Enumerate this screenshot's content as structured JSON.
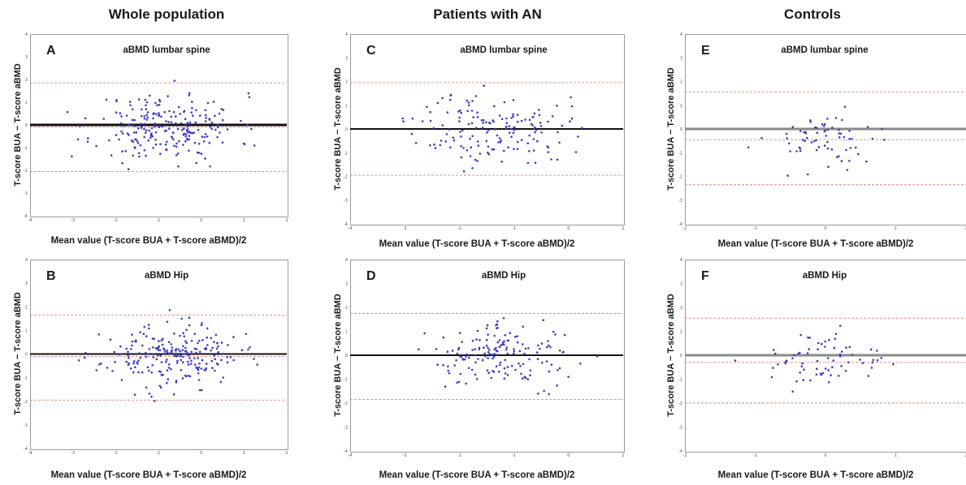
{
  "columns": [
    "Whole population",
    "Patients with AN",
    "Controls"
  ],
  "colors": {
    "points": "#3b3bc4",
    "limits": "#e08080",
    "zero": "#111111",
    "bias": "#8a8a8a"
  },
  "chart_data": [
    {
      "id": "A",
      "type": "scatter",
      "title": "aBMD lumbar spine",
      "letter": "A",
      "xlabel": "Mean value (T-score BUA + T-score aBMD)/2",
      "ylabel": "T-score BUA − T-score aBMD",
      "xlim": [
        -4,
        2
      ],
      "ylim": [
        -4,
        4
      ],
      "xticks": [
        -4,
        -3,
        -2,
        -1,
        0,
        1,
        2
      ],
      "yticks": [
        -4,
        -3,
        -2,
        -1,
        0,
        1,
        2,
        3,
        4
      ],
      "bias": -0.1,
      "upper_limit": 1.85,
      "lower_limit": -2.05,
      "n_points": 230,
      "x_center": -0.8,
      "x_spread": 1.5,
      "y_spread": 1.0,
      "seed": 11
    },
    {
      "id": "B",
      "type": "scatter",
      "title": "aBMD Hip",
      "letter": "B",
      "xlabel": "Mean value (T-score BUA + T-score aBMD)/2",
      "ylabel": "T-score BUA − T-score aBMD",
      "xlim": [
        -4,
        2
      ],
      "ylim": [
        -4,
        4
      ],
      "xticks": [
        -4,
        -3,
        -2,
        -1,
        0,
        1,
        2
      ],
      "yticks": [
        -4,
        -3,
        -2,
        -1,
        0,
        1,
        2,
        3,
        4
      ],
      "bias": -0.1,
      "upper_limit": 1.65,
      "lower_limit": -1.95,
      "n_points": 230,
      "x_center": -0.7,
      "x_spread": 1.45,
      "y_spread": 0.85,
      "seed": 23
    },
    {
      "id": "C",
      "type": "scatter",
      "title": "aBMD lumbar spine",
      "letter": "C",
      "xlabel": "Mean value (T-score BUA + T-score aBMD)/2",
      "ylabel": "T-score BUA − T-score aBMD",
      "xlim": [
        -4,
        1
      ],
      "ylim": [
        -4,
        4
      ],
      "xticks": [
        -4,
        -3,
        -2,
        -1,
        0,
        1
      ],
      "yticks": [
        -4,
        -3,
        -2,
        -1,
        0,
        1,
        2,
        3,
        4
      ],
      "bias": 0.0,
      "upper_limit": 1.95,
      "lower_limit": -1.95,
      "n_points": 160,
      "x_center": -1.4,
      "x_spread": 1.25,
      "y_spread": 1.0,
      "seed": 37
    },
    {
      "id": "D",
      "type": "scatter",
      "title": "aBMD Hip",
      "letter": "D",
      "xlabel": "Mean value (T-score BUA + T-score aBMD)/2",
      "ylabel": "T-score BUA − T-score aBMD",
      "xlim": [
        -4,
        1
      ],
      "ylim": [
        -4,
        4
      ],
      "xticks": [
        -4,
        -3,
        -2,
        -1,
        0,
        1
      ],
      "yticks": [
        -4,
        -3,
        -2,
        -1,
        0,
        1,
        2,
        3,
        4
      ],
      "bias": 0.0,
      "upper_limit": 1.75,
      "lower_limit": -1.85,
      "n_points": 160,
      "x_center": -1.2,
      "x_spread": 1.2,
      "y_spread": 0.85,
      "seed": 41
    },
    {
      "id": "E",
      "type": "scatter",
      "title": "aBMD lumbar spine",
      "letter": "E",
      "xlabel": "Mean value (T-score BUA + T-score aBMD)/2",
      "ylabel": "T-score BUA − T-score aBMD",
      "xlim": [
        -2,
        2
      ],
      "ylim": [
        -4,
        4
      ],
      "xticks": [
        -2,
        -1,
        0,
        1,
        2
      ],
      "yticks": [
        -4,
        -3,
        -2,
        -1,
        0,
        1,
        2,
        3,
        4
      ],
      "bias": -0.45,
      "upper_limit": 1.55,
      "lower_limit": -2.35,
      "n_points": 70,
      "x_center": 0.0,
      "x_spread": 0.75,
      "y_spread": 0.85,
      "seed": 53
    },
    {
      "id": "F",
      "type": "scatter",
      "title": "aBMD Hip",
      "letter": "F",
      "xlabel": "Mean value (T-score BUA + T-score aBMD)/2",
      "ylabel": "T-score BUA − T-score aBMD",
      "xlim": [
        -2,
        2
      ],
      "ylim": [
        -4,
        4
      ],
      "xticks": [
        -2,
        -1,
        0,
        1,
        2
      ],
      "yticks": [
        -4,
        -3,
        -2,
        -1,
        0,
        1,
        2,
        3,
        4
      ],
      "bias": -0.3,
      "upper_limit": 1.55,
      "lower_limit": -2.0,
      "n_points": 70,
      "x_center": 0.0,
      "x_spread": 0.8,
      "y_spread": 0.8,
      "seed": 67
    }
  ]
}
